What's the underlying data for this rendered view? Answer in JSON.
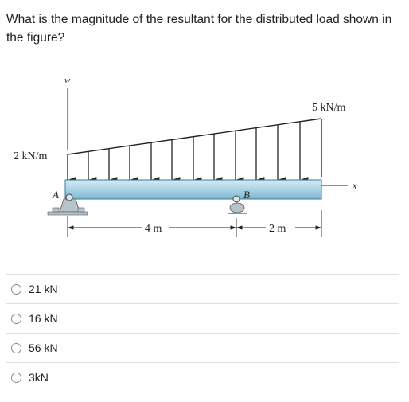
{
  "question": {
    "text": "What is the magnitude of the resultant for the distributed load shown in the figure?"
  },
  "figure": {
    "w_axis_label": "w",
    "x_axis_label": "x",
    "left_intensity": "2 kN/m",
    "right_intensity": "5 kN/m",
    "point_a": "A",
    "point_b": "B",
    "span_ab": "4 m",
    "span_overhang": "2 m",
    "colors": {
      "beam": "#a9d3e6",
      "beam_edge": "#3a7a94",
      "support": "#b8c3c8"
    }
  },
  "options": [
    {
      "label": "21 kN"
    },
    {
      "label": "16 kN"
    },
    {
      "label": "56 kN"
    },
    {
      "label": "3kN"
    }
  ]
}
